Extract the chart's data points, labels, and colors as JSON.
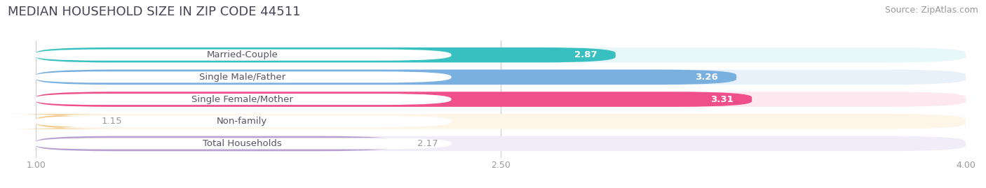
{
  "title": "MEDIAN HOUSEHOLD SIZE IN ZIP CODE 44511",
  "source": "Source: ZipAtlas.com",
  "categories": [
    "Married-Couple",
    "Single Male/Father",
    "Single Female/Mother",
    "Non-family",
    "Total Households"
  ],
  "values": [
    2.87,
    3.26,
    3.31,
    1.15,
    2.17
  ],
  "bar_colors": [
    "#38c0c0",
    "#7ab0e0",
    "#f0508a",
    "#f5c98a",
    "#b8a0d0"
  ],
  "bar_background_colors": [
    "#e8f8f8",
    "#e8f0fa",
    "#fde8f0",
    "#fdf5e8",
    "#f0ecf8"
  ],
  "xlim": [
    1.0,
    4.0
  ],
  "xticks": [
    1.0,
    2.5,
    4.0
  ],
  "title_fontsize": 13,
  "source_fontsize": 9,
  "label_fontsize": 9.5,
  "value_fontsize": 9.5,
  "bar_height": 0.68,
  "background_color": "#ffffff",
  "row_bg_color": "#f0f0f0",
  "grid_color": "#cccccc",
  "text_dark": "#555566",
  "text_gray": "#999999"
}
